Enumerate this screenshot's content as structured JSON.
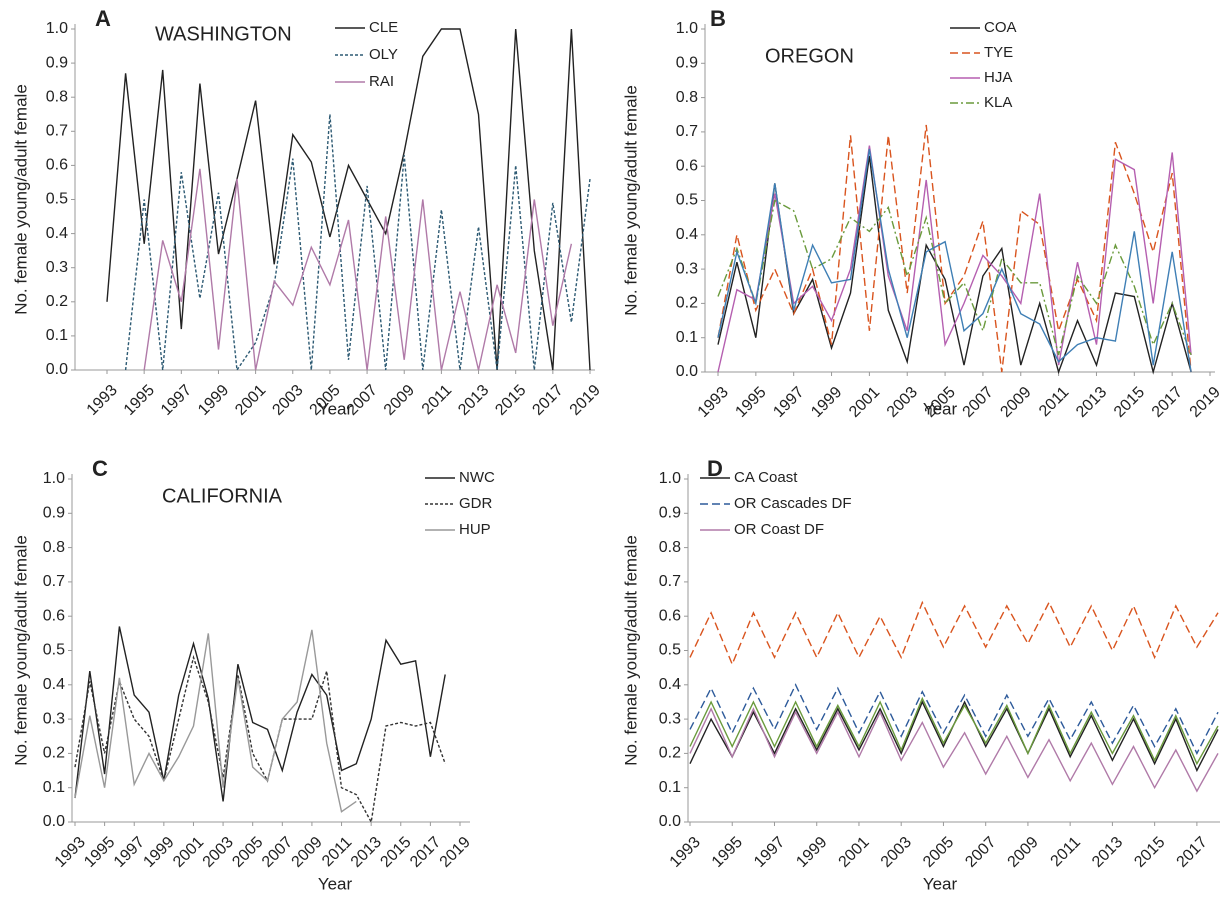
{
  "chart_data": [
    {
      "type": "line",
      "panel_label": "A",
      "annotation": "WASHINGTON",
      "y_label": "No. female young/adult female",
      "x_label": "Year",
      "x": [
        1993,
        1994,
        1995,
        1996,
        1997,
        1998,
        1999,
        2000,
        2001,
        2002,
        2003,
        2004,
        2005,
        2006,
        2007,
        2008,
        2009,
        2010,
        2011,
        2012,
        2013,
        2014,
        2015,
        2016,
        2017,
        2018,
        2019
      ],
      "xlim": [
        1993,
        2019
      ],
      "xticks": [
        1993,
        1995,
        1997,
        1999,
        2001,
        2003,
        2005,
        2007,
        2009,
        2011,
        2013,
        2015,
        2017,
        2019
      ],
      "ylim": [
        0,
        1
      ],
      "yticks": [
        {
          "value": 0,
          "label": "0.0"
        },
        0.1,
        0.2,
        0.3,
        0.4,
        0.5,
        0.6,
        0.7,
        0.8,
        0.9,
        {
          "value": 1,
          "label": "1.0"
        }
      ],
      "series": [
        {
          "name": "CLE",
          "color": "#222222",
          "dash": "solid",
          "values": [
            0.2,
            0.87,
            0.37,
            0.88,
            0.12,
            0.84,
            0.34,
            0.56,
            0.79,
            0.31,
            0.69,
            0.61,
            0.39,
            0.6,
            0.5,
            0.4,
            0.64,
            0.92,
            1.0,
            1.0,
            0.75,
            0.0,
            1.0,
            0.35,
            0.0,
            1.0,
            0.0
          ]
        },
        {
          "name": "OLY",
          "color": "#2d5a73",
          "dash": "dotted",
          "values": [
            null,
            0.0,
            0.5,
            0.0,
            0.58,
            0.21,
            0.52,
            0.0,
            0.08,
            0.25,
            0.62,
            0.0,
            0.75,
            0.03,
            0.54,
            0.0,
            0.63,
            0.0,
            0.47,
            0.0,
            0.42,
            0.0,
            0.6,
            0.0,
            0.49,
            0.14,
            0.56
          ]
        },
        {
          "name": "RAI",
          "color": "#b07aa8",
          "dash": "solid",
          "values": [
            null,
            null,
            0.0,
            0.38,
            0.2,
            0.59,
            0.06,
            0.56,
            0.0,
            0.26,
            0.19,
            0.36,
            0.25,
            0.44,
            0.0,
            0.45,
            0.03,
            0.5,
            0.0,
            0.23,
            0.0,
            0.25,
            0.05,
            0.5,
            0.13,
            0.37,
            null
          ]
        }
      ]
    },
    {
      "type": "line",
      "panel_label": "B",
      "annotation": "OREGON",
      "y_label": "No. female young/adult female",
      "x_label": "Year",
      "x": [
        1993,
        1994,
        1995,
        1996,
        1997,
        1998,
        1999,
        2000,
        2001,
        2002,
        2003,
        2004,
        2005,
        2006,
        2007,
        2008,
        2009,
        2010,
        2011,
        2012,
        2013,
        2014,
        2015,
        2016,
        2017,
        2018
      ],
      "xlim": [
        1993,
        2019
      ],
      "xticks": [
        1993,
        1995,
        1997,
        1999,
        2001,
        2003,
        2005,
        2007,
        2009,
        2011,
        2013,
        2015,
        2017,
        2019
      ],
      "ylim": [
        0,
        1
      ],
      "yticks": [
        {
          "value": 0,
          "label": "0.0"
        },
        0.1,
        0.2,
        0.3,
        0.4,
        0.5,
        0.6,
        0.7,
        0.8,
        0.9,
        {
          "value": 1,
          "label": "1.0"
        }
      ],
      "series": [
        {
          "name": "COA",
          "color": "#222222",
          "dash": "solid",
          "values": [
            0.08,
            0.32,
            0.1,
            0.55,
            0.17,
            0.27,
            0.07,
            0.23,
            0.63,
            0.18,
            0.03,
            0.37,
            0.27,
            0.02,
            0.28,
            0.36,
            0.02,
            0.2,
            0.0,
            0.15,
            0.02,
            0.23,
            0.22,
            0.0,
            0.2,
            0.0
          ]
        },
        {
          "name": "TYE",
          "color": "#d9541e",
          "dash": "dashed",
          "values": [
            0.1,
            0.4,
            0.18,
            0.3,
            0.17,
            0.3,
            0.08,
            0.69,
            0.12,
            0.69,
            0.23,
            0.72,
            0.2,
            0.28,
            0.44,
            0.0,
            0.47,
            0.43,
            0.12,
            0.27,
            0.15,
            0.67,
            0.52,
            0.35,
            0.58,
            0.0
          ]
        },
        {
          "name": "HJA",
          "color": "#b55fb0",
          "dash": "solid",
          "values": [
            0.0,
            0.24,
            0.21,
            0.52,
            0.2,
            0.25,
            0.15,
            0.3,
            0.66,
            0.28,
            0.12,
            0.56,
            0.08,
            0.2,
            0.34,
            0.28,
            0.2,
            0.52,
            0.02,
            0.32,
            0.08,
            0.62,
            0.59,
            0.2,
            0.64,
            0.05
          ]
        },
        {
          "name": "KLA",
          "color": "#6a9a3c",
          "dash": "dashdot",
          "values": [
            0.22,
            0.36,
            0.2,
            0.5,
            0.47,
            0.3,
            0.33,
            0.45,
            0.41,
            0.48,
            0.28,
            0.45,
            0.2,
            0.26,
            0.12,
            0.33,
            0.26,
            0.26,
            0.05,
            0.28,
            0.2,
            0.37,
            0.25,
            0.08,
            0.2,
            0.05
          ]
        },
        {
          "color": "#3f7fb5",
          "dash": "solid",
          "values": [
            0.1,
            0.35,
            0.2,
            0.55,
            0.18,
            0.37,
            0.26,
            0.27,
            0.65,
            0.3,
            0.1,
            0.35,
            0.38,
            0.12,
            0.17,
            0.3,
            0.17,
            0.14,
            0.03,
            0.08,
            0.1,
            0.09,
            0.41,
            0.02,
            0.35,
            0.0
          ]
        }
      ]
    },
    {
      "type": "line",
      "panel_label": "C",
      "annotation": "CALIFORNIA",
      "y_label": "No. female young/adult female",
      "x_label": "Year",
      "x": [
        1993,
        1994,
        1995,
        1996,
        1997,
        1998,
        1999,
        2000,
        2001,
        2002,
        2003,
        2004,
        2005,
        2006,
        2007,
        2008,
        2009,
        2010,
        2011,
        2012,
        2013,
        2014,
        2015,
        2016,
        2017,
        2018
      ],
      "xlim": [
        1993,
        2019
      ],
      "xticks": [
        1993,
        1995,
        1997,
        1999,
        2001,
        2003,
        2005,
        2007,
        2009,
        2011,
        2013,
        2015,
        2017,
        2019
      ],
      "ylim": [
        0,
        1
      ],
      "yticks": [
        {
          "value": 0,
          "label": "0.0"
        },
        0.1,
        0.2,
        0.3,
        0.4,
        0.5,
        0.6,
        0.7,
        0.8,
        0.9,
        {
          "value": 1,
          "label": "1.0"
        }
      ],
      "series": [
        {
          "name": "NWC",
          "color": "#222222",
          "dash": "solid",
          "values": [
            0.07,
            0.44,
            0.14,
            0.57,
            0.37,
            0.32,
            0.12,
            0.37,
            0.52,
            0.36,
            0.06,
            0.46,
            0.29,
            0.27,
            0.15,
            0.32,
            0.43,
            0.37,
            0.15,
            0.17,
            0.3,
            0.53,
            0.46,
            0.47,
            0.19,
            0.43
          ]
        },
        {
          "name": "GDR",
          "color": "#333333",
          "dash": "dotted",
          "values": [
            0.16,
            0.41,
            0.2,
            0.41,
            0.3,
            0.25,
            0.12,
            0.3,
            0.48,
            0.35,
            0.13,
            0.43,
            0.2,
            0.12,
            0.3,
            0.3,
            0.3,
            0.44,
            0.1,
            0.08,
            0.0,
            0.28,
            0.29,
            0.28,
            0.29,
            0.17
          ]
        },
        {
          "name": "HUP",
          "color": "#999999",
          "dash": "solid",
          "values": [
            0.07,
            0.31,
            0.1,
            0.42,
            0.11,
            0.2,
            0.12,
            0.19,
            0.28,
            0.55,
            0.1,
            0.42,
            0.16,
            0.12,
            0.3,
            0.35,
            0.56,
            0.23,
            0.03,
            0.06,
            null,
            null,
            null,
            null,
            null,
            null
          ]
        }
      ]
    },
    {
      "type": "line",
      "panel_label": "D",
      "y_label": "No. female young/adult female",
      "x_label": "Year",
      "x": [
        1993,
        1994,
        1995,
        1996,
        1997,
        1998,
        1999,
        2000,
        2001,
        2002,
        2003,
        2004,
        2005,
        2006,
        2007,
        2008,
        2009,
        2010,
        2011,
        2012,
        2013,
        2014,
        2015,
        2016,
        2017,
        2018
      ],
      "xlim": [
        1993,
        2018
      ],
      "xticks": [
        1993,
        1995,
        1997,
        1999,
        2001,
        2003,
        2005,
        2007,
        2009,
        2011,
        2013,
        2015,
        2017
      ],
      "ylim": [
        0,
        1
      ],
      "yticks": [
        {
          "value": 0,
          "label": "0.0"
        },
        0.1,
        0.2,
        0.3,
        0.4,
        0.5,
        0.6,
        0.7,
        0.8,
        0.9,
        {
          "value": 1,
          "label": "1.0"
        }
      ],
      "series": [
        {
          "name": "CA Coast",
          "color": "#222222",
          "dash": "solid",
          "values": [
            0.17,
            0.3,
            0.19,
            0.32,
            0.2,
            0.33,
            0.21,
            0.33,
            0.21,
            0.33,
            0.2,
            0.35,
            0.22,
            0.35,
            0.22,
            0.33,
            0.2,
            0.33,
            0.19,
            0.31,
            0.18,
            0.3,
            0.17,
            0.3,
            0.15,
            0.27
          ]
        },
        {
          "name": "OR Cascades DF",
          "color": "#2d5a9a",
          "dash": "dashed",
          "values": [
            0.27,
            0.39,
            0.26,
            0.39,
            0.27,
            0.4,
            0.27,
            0.39,
            0.26,
            0.38,
            0.25,
            0.38,
            0.26,
            0.37,
            0.25,
            0.37,
            0.25,
            0.36,
            0.24,
            0.35,
            0.23,
            0.34,
            0.22,
            0.33,
            0.2,
            0.32
          ]
        },
        {
          "name": "OR Coast DF",
          "color": "#b07aa8",
          "dash": "solid",
          "values": [
            0.2,
            0.33,
            0.19,
            0.33,
            0.19,
            0.32,
            0.2,
            0.32,
            0.19,
            0.32,
            0.18,
            0.29,
            0.16,
            0.26,
            0.14,
            0.25,
            0.13,
            0.24,
            0.12,
            0.23,
            0.11,
            0.22,
            0.1,
            0.21,
            0.09,
            0.2
          ]
        },
        {
          "color": "#d9541e",
          "dash": "dashed",
          "values": [
            0.48,
            0.61,
            0.46,
            0.61,
            0.48,
            0.61,
            0.48,
            0.61,
            0.48,
            0.6,
            0.48,
            0.64,
            0.51,
            0.63,
            0.51,
            0.63,
            0.52,
            0.64,
            0.51,
            0.63,
            0.5,
            0.63,
            0.48,
            0.63,
            0.51,
            0.61
          ]
        },
        {
          "color": "#6a9a3c",
          "dash": "solid",
          "values": [
            0.22,
            0.35,
            0.22,
            0.35,
            0.22,
            0.35,
            0.22,
            0.34,
            0.22,
            0.35,
            0.21,
            0.36,
            0.23,
            0.34,
            0.23,
            0.34,
            0.2,
            0.34,
            0.2,
            0.32,
            0.2,
            0.31,
            0.18,
            0.31,
            0.17,
            0.28
          ]
        }
      ]
    }
  ]
}
